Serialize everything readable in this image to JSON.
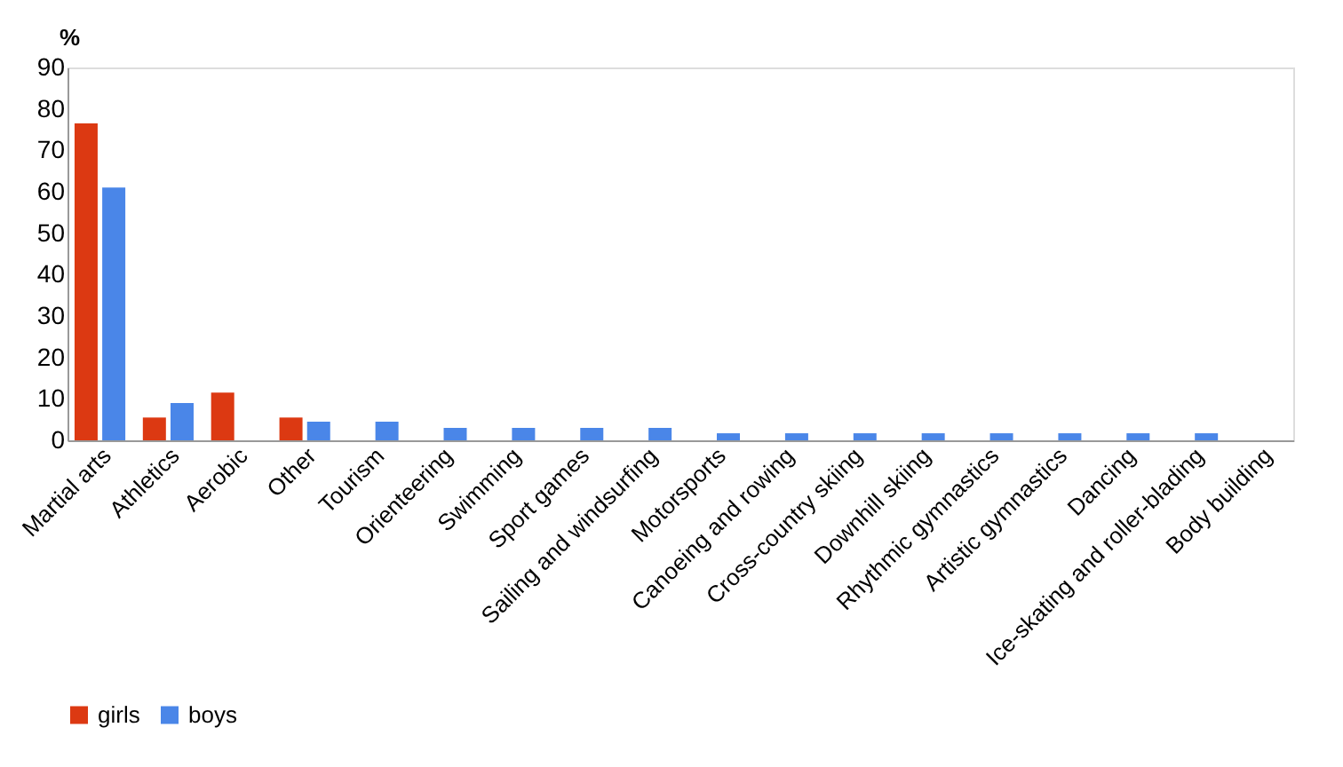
{
  "chart_data": {
    "type": "bar",
    "ylabel": "%",
    "categories": [
      "Martial arts",
      "Athletics",
      "Aerobic",
      "Other",
      "Tourism",
      "Orienteering",
      "Swimming",
      "Sport games",
      "Sailing and windsurfing",
      "Motorsports",
      "Canoeing and rowing",
      "Cross-country skiing",
      "Downhill skiing",
      "Rhythmic gymnastics",
      "Artistic gymnastics",
      "Dancing",
      "Ice-skating and roller-blading",
      "Body building"
    ],
    "series": [
      {
        "name": "girls",
        "color": "#dc3912",
        "values": [
          76.5,
          5.5,
          11.5,
          5.5,
          null,
          null,
          null,
          null,
          null,
          null,
          null,
          null,
          null,
          null,
          null,
          null,
          null,
          null
        ]
      },
      {
        "name": "boys",
        "color": "#4a86e8",
        "values": [
          61,
          9,
          null,
          4.5,
          4.5,
          3,
          3,
          3,
          3,
          1.7,
          1.7,
          1.7,
          1.7,
          1.7,
          1.7,
          1.7,
          1.7,
          null
        ]
      }
    ],
    "ylim": [
      0,
      90
    ],
    "yticks": [
      0,
      10,
      20,
      30,
      40,
      50,
      60,
      70,
      80,
      90
    ],
    "grid": false,
    "legend": "bottom"
  }
}
